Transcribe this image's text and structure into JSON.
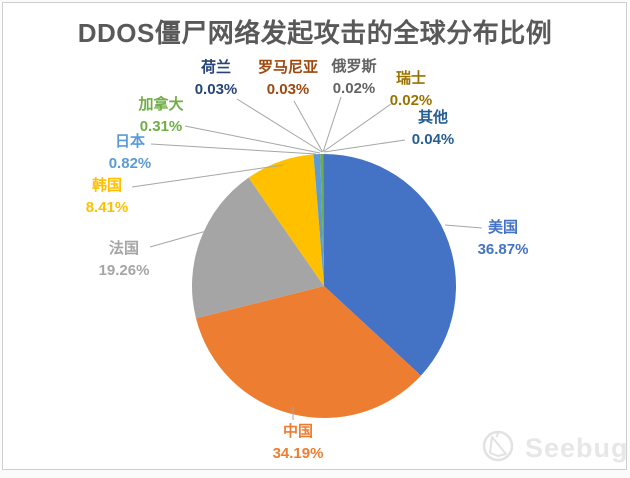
{
  "title": {
    "text": "DDOS僵尸网络发起攻击的全球分布比例",
    "color": "#595959"
  },
  "chart_data": {
    "type": "pie",
    "title": "DDOS僵尸网络发起攻击的全球分布比例",
    "unit": "%",
    "start_angle_deg": 0,
    "direction": "clockwise",
    "legend": "none",
    "data_labels": "outside, category name + percentage, with leader lines",
    "slices": [
      {
        "label": "美国",
        "value": 36.87,
        "color": "#4472C4"
      },
      {
        "label": "中国",
        "value": 34.19,
        "color": "#ED7D31"
      },
      {
        "label": "法国",
        "value": 19.26,
        "color": "#A5A5A5"
      },
      {
        "label": "韩国",
        "value": 8.41,
        "color": "#FFC000"
      },
      {
        "label": "日本",
        "value": 0.82,
        "color": "#5B9BD5"
      },
      {
        "label": "加拿大",
        "value": 0.31,
        "color": "#70AD47"
      },
      {
        "label": "荷兰",
        "value": 0.03,
        "color": "#264478"
      },
      {
        "label": "罗马尼亚",
        "value": 0.03,
        "color": "#9E480E"
      },
      {
        "label": "俄罗斯",
        "value": 0.02,
        "color": "#636363"
      },
      {
        "label": "瑞士",
        "value": 0.02,
        "color": "#997300"
      },
      {
        "label": "其他",
        "value": 0.04,
        "color": "#255E91"
      }
    ]
  },
  "frame": {
    "background": "#FFFFFF",
    "border_color": "#CFCFCF",
    "leader_line_color": "#A6A6A6"
  },
  "watermark": {
    "text": "Seebug",
    "color": "#E7E7E7"
  }
}
